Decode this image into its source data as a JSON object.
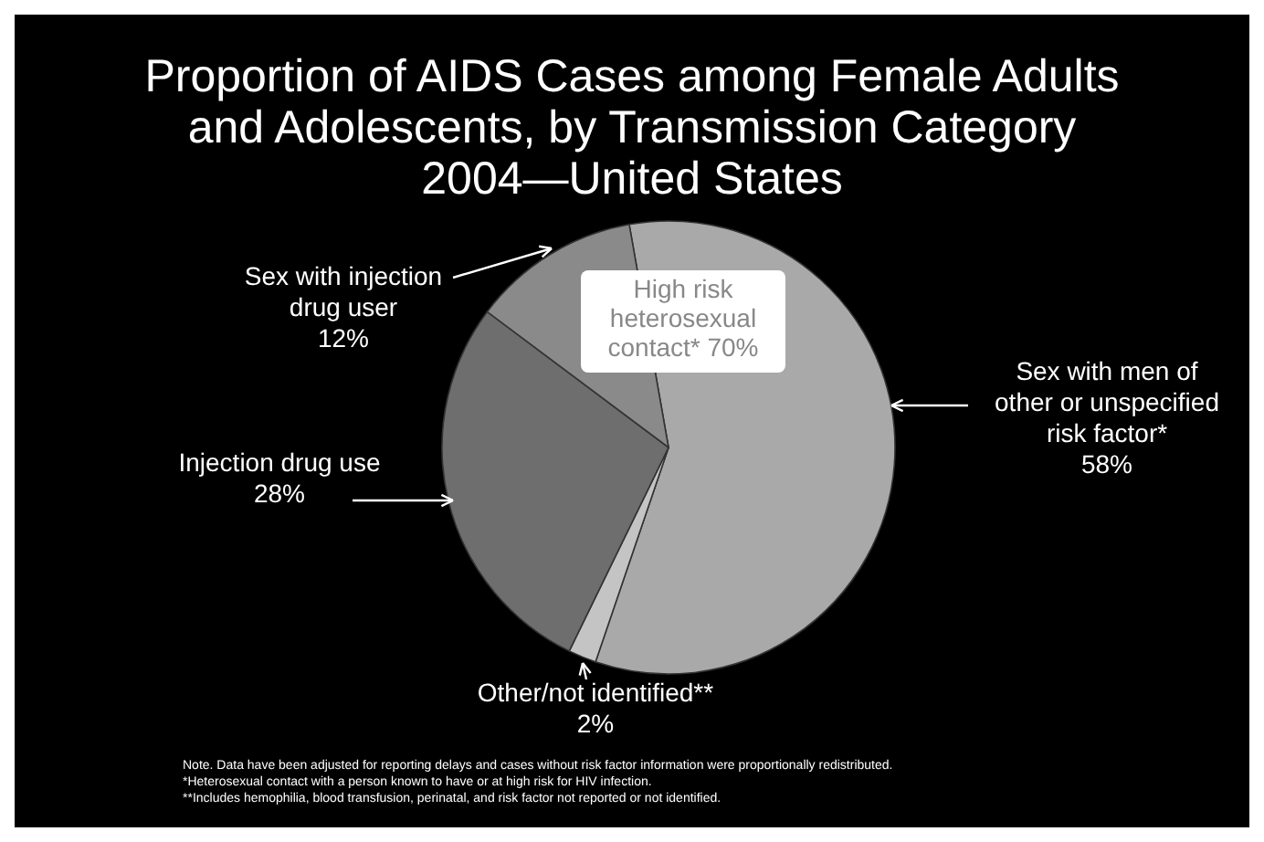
{
  "chart_data": {
    "type": "pie",
    "title": "Proportion of AIDS Cases among Female Adults and Adolescents, by Transmission Category",
    "subtitle": "2004—United States",
    "categories": [
      "Sex with men of other or unspecified risk factor*",
      "Other/not identified**",
      "Injection drug use",
      "Sex with injection drug user"
    ],
    "values": [
      58,
      2,
      28,
      12
    ],
    "colors": [
      "#a9a9a9",
      "#c4c4c4",
      "#6e6e6e",
      "#8a8a8a"
    ],
    "value_labels": [
      "58%",
      "2%",
      "28%",
      "12%"
    ],
    "annotations": [
      "High risk heterosexual contact* 70%",
      "Note. Data have been adjusted for reporting delays and cases without risk factor information were proportionally redistributed.",
      "*Heterosexual contact with a person known to have or at high risk for HIV infection.",
      "**Includes hemophilia, blood transfusion, perinatal, and risk factor not reported or not identified."
    ]
  }
}
